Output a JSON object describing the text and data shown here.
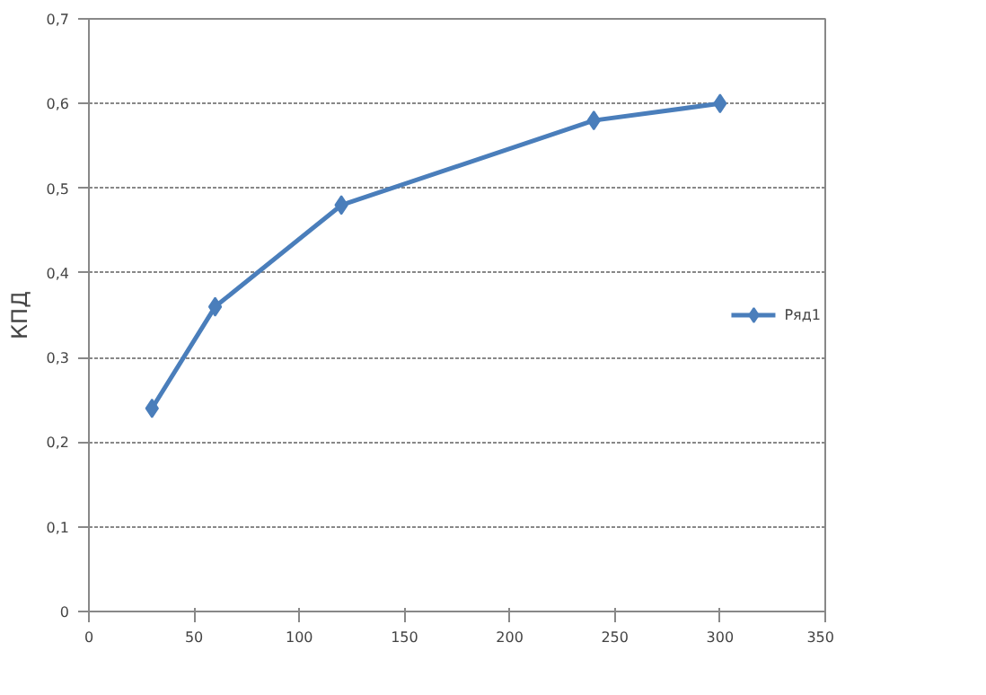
{
  "chart_data": {
    "type": "line",
    "ylabel": "КПД",
    "x": [
      30,
      60,
      120,
      240,
      300
    ],
    "series": [
      {
        "name": "Ряд1",
        "color": "#4a7ebb",
        "values": [
          0.24,
          0.36,
          0.48,
          0.58,
          0.6
        ]
      }
    ],
    "xlim": [
      0,
      350
    ],
    "xticks": [
      0,
      50,
      100,
      150,
      200,
      250,
      300,
      350
    ],
    "ylim": [
      0,
      0.7
    ],
    "yticks": [
      0,
      {
        "value": 0.1,
        "label": "0,1"
      },
      {
        "value": 0.2,
        "label": "0,2"
      },
      {
        "value": 0.3,
        "label": "0,3"
      },
      {
        "value": 0.4,
        "label": "0,4"
      },
      {
        "value": 0.5,
        "label": "0,5"
      },
      {
        "value": 0.6,
        "label": "0,6"
      },
      {
        "value": 0.7,
        "label": "0,7"
      }
    ],
    "grid": "y",
    "legend": "right",
    "marker": "diamond",
    "line_style": "solid"
  }
}
